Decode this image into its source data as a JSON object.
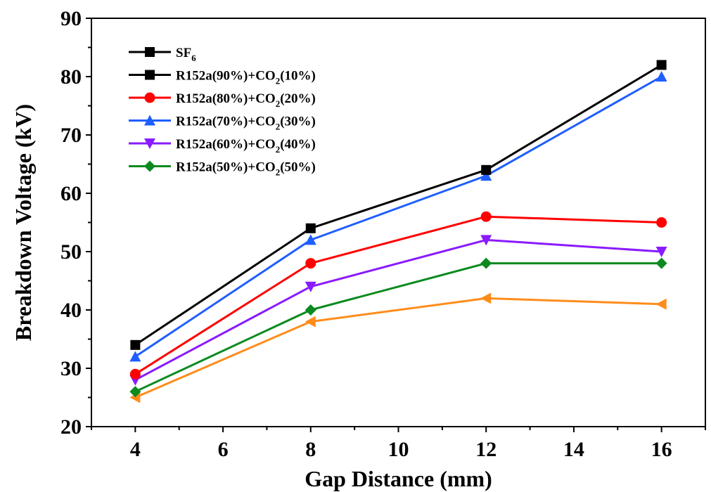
{
  "chart_data": {
    "type": "line",
    "xlabel": "Gap Distance (mm)",
    "ylabel": "Breakdown Voltage (kV)",
    "xlim": [
      3,
      17
    ],
    "ylim": [
      20,
      90
    ],
    "x_ticks": [
      4,
      6,
      8,
      10,
      12,
      14,
      16
    ],
    "y_ticks": [
      20,
      30,
      40,
      50,
      60,
      70,
      80,
      90
    ],
    "x": [
      4,
      8,
      12,
      16
    ],
    "grid": false,
    "legend_position": "top-left",
    "series": [
      {
        "label_main": "SF",
        "label_sub": "6",
        "label_tail": "",
        "color": "#000000",
        "marker": "square",
        "in_legend": true,
        "values": [
          34,
          54,
          64,
          82
        ]
      },
      {
        "label_main": "R152a(90%)+CO",
        "label_sub": "2",
        "label_tail": "(10%)",
        "color": "#000000",
        "marker": "square",
        "in_legend": true,
        "values": [
          null,
          null,
          null,
          null
        ]
      },
      {
        "label_main": "R152a(80%)+CO",
        "label_sub": "2",
        "label_tail": "(20%)",
        "color": "#ff0000",
        "marker": "circle",
        "in_legend": true,
        "values": [
          29,
          48,
          56,
          55
        ]
      },
      {
        "label_main": "R152a(70%)+CO",
        "label_sub": "2",
        "label_tail": "(30%)",
        "color": "#1f5eff",
        "marker": "triangle-up",
        "in_legend": true,
        "values": [
          32,
          52,
          63,
          80
        ]
      },
      {
        "label_main": "R152a(60%)+CO",
        "label_sub": "2",
        "label_tail": "(40%)",
        "color": "#8a1bff",
        "marker": "triangle-down",
        "in_legend": true,
        "values": [
          28,
          44,
          52,
          50
        ]
      },
      {
        "label_main": "R152a(50%)+CO",
        "label_sub": "2",
        "label_tail": "(50%)",
        "color": "#0a8a1f",
        "marker": "diamond",
        "in_legend": true,
        "values": [
          26,
          40,
          48,
          48
        ]
      },
      {
        "label_main": "",
        "label_sub": "",
        "label_tail": "",
        "color": "#ff8c1a",
        "marker": "triangle-left",
        "in_legend": false,
        "values": [
          25,
          38,
          42,
          41
        ]
      }
    ]
  }
}
